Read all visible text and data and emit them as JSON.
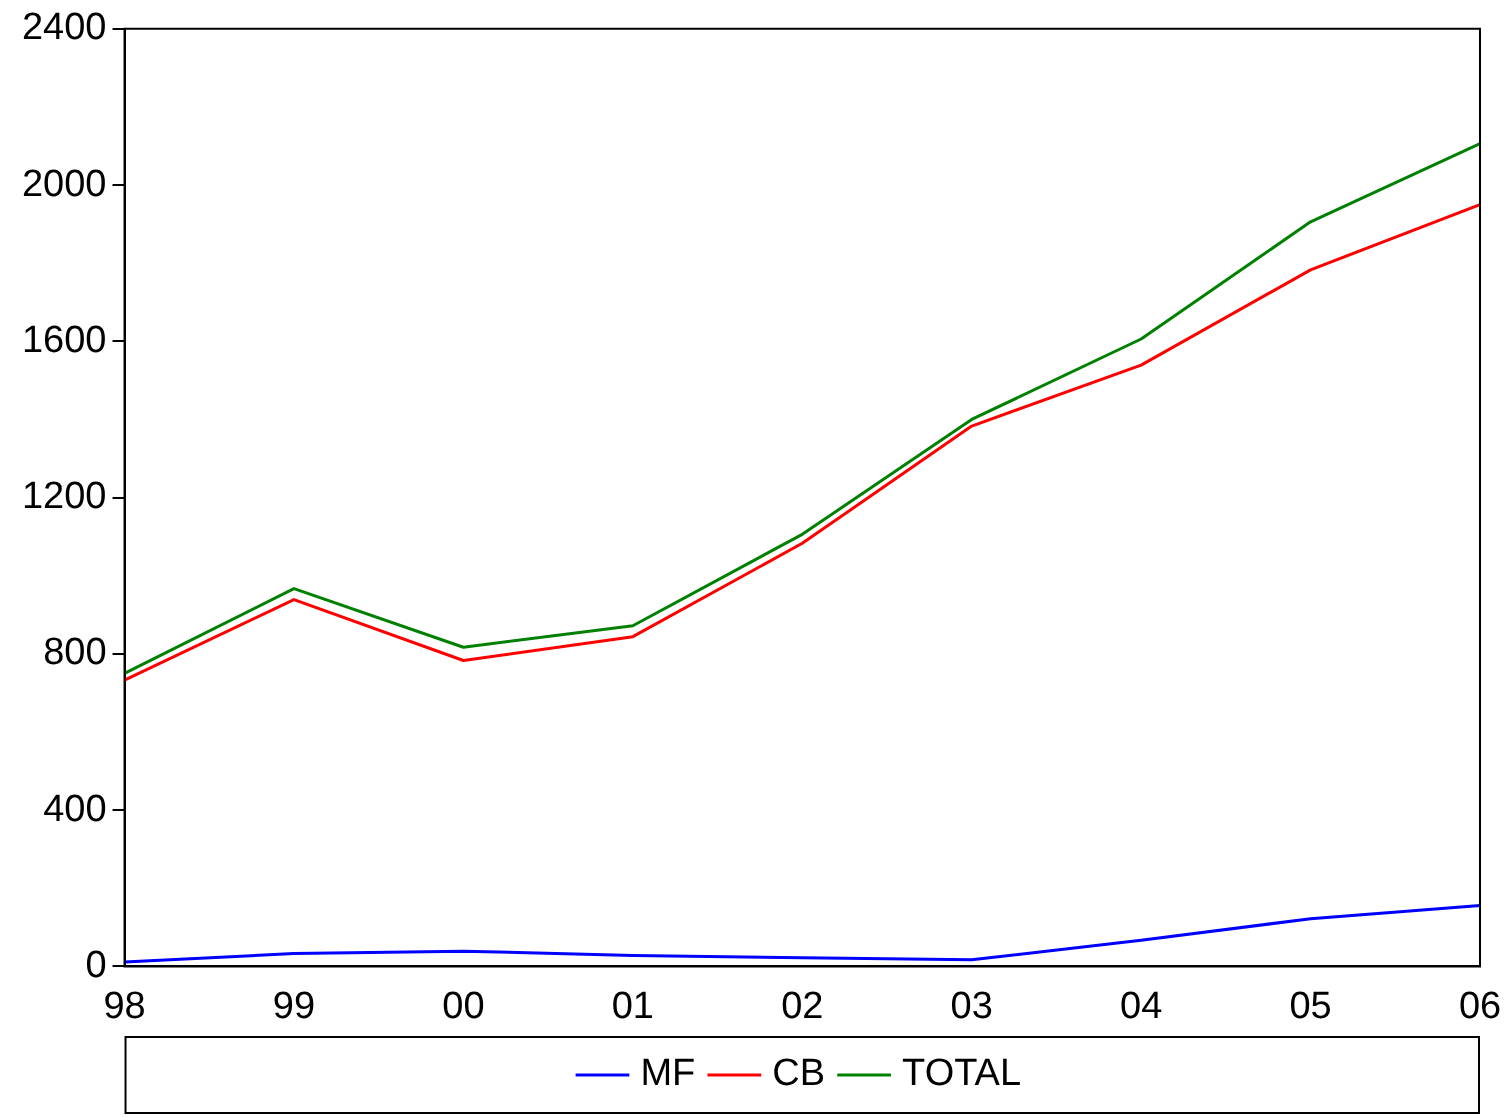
{
  "chart_data": {
    "type": "line",
    "categories": [
      "98",
      "99",
      "00",
      "01",
      "02",
      "03",
      "04",
      "05",
      "06"
    ],
    "series": [
      {
        "name": "MF",
        "color": "#0000ff",
        "values": [
          11,
          33,
          39,
          28,
          22,
          17,
          67,
          122,
          156
        ]
      },
      {
        "name": "CB",
        "color": "#ff0000",
        "values": [
          733,
          939,
          783,
          844,
          1083,
          1383,
          1539,
          1783,
          1950
        ]
      },
      {
        "name": "TOTAL",
        "color": "#008000",
        "values": [
          750,
          967,
          817,
          872,
          1106,
          1400,
          1606,
          1906,
          2106
        ]
      }
    ],
    "ylim": [
      0,
      2400
    ],
    "yticks": [
      0,
      400,
      800,
      1200,
      1600,
      2000,
      2400
    ],
    "grid": false,
    "legend": "bottom",
    "marker": "none",
    "line_style": "solid"
  }
}
